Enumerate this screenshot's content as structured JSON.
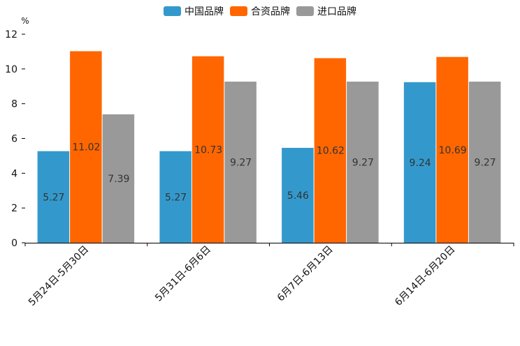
{
  "chart_data": {
    "type": "bar",
    "title": "",
    "ylabel": "%",
    "xlabel": "",
    "ylim": [
      0,
      12
    ],
    "yticks": [
      0,
      2,
      4,
      6,
      8,
      10,
      12
    ],
    "legend_position": "top-center",
    "grid": false,
    "categories": [
      "5月24日-5月30日",
      "5月31日-6月6日",
      "6月7日-6月13日",
      "6月14日-6月20日"
    ],
    "series": [
      {
        "name": "中国品牌",
        "color": "#3399cc",
        "values": [
          5.27,
          5.27,
          5.46,
          9.24
        ]
      },
      {
        "name": "合资品牌",
        "color": "#ff6600",
        "values": [
          11.02,
          10.73,
          10.62,
          10.69
        ]
      },
      {
        "name": "进口品牌",
        "color": "#999999",
        "values": [
          7.39,
          9.27,
          9.27,
          9.27
        ]
      }
    ]
  }
}
